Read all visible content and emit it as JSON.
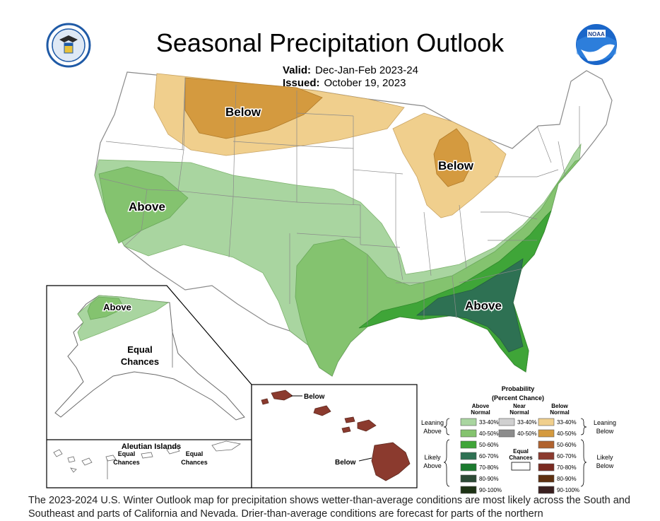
{
  "title": "Seasonal Precipitation Outlook",
  "valid_label": "Valid:",
  "valid_value": "Dec-Jan-Feb 2023-24",
  "issued_label": "Issued:",
  "issued_value": "October 19, 2023",
  "map_labels": {
    "below_northwest": "Below",
    "below_great_lakes": "Below",
    "above_west": "Above",
    "above_southeast": "Above",
    "alaska_above": "Above",
    "alaska_equal_1": "Equal",
    "alaska_equal_2": "Chances",
    "aleutian_title": "Aleutian Islands",
    "aleutian_equal_1": "Equal",
    "aleutian_equal_2": "Chances",
    "aleutian_equal_3": "Equal",
    "aleutian_equal_4": "Chances",
    "hawaii_below_1": "Below",
    "hawaii_below_2": "Below"
  },
  "colors": {
    "above_33_40": "#a9d5a0",
    "above_40_50": "#84c36f",
    "above_50_60": "#3fa538",
    "above_60_70": "#2e7153",
    "below_33_40": "#f0cf8d",
    "below_40_50": "#d49a3f",
    "below_hawaii": "#8b3a2e"
  },
  "legend": {
    "title_1": "Probability",
    "title_2": "(Percent Chance)",
    "above_header_1": "Above",
    "above_header_2": "Normal",
    "near_header_1": "Near",
    "near_header_2": "Normal",
    "below_header_1": "Below",
    "below_header_2": "Normal",
    "leaning_above_1": "Leaning",
    "leaning_above_2": "Above",
    "likely_above_1": "Likely",
    "likely_above_2": "Above",
    "leaning_below_1": "Leaning",
    "leaning_below_2": "Below",
    "likely_below_1": "Likely",
    "likely_below_2": "Below",
    "equal_1": "Equal",
    "equal_2": "Chances",
    "above_items": [
      {
        "label": "33-40%",
        "color": "#a9d5a0"
      },
      {
        "label": "40-50%",
        "color": "#84c36f"
      },
      {
        "label": "50-60%",
        "color": "#3fa538"
      },
      {
        "label": "60-70%",
        "color": "#2e7153"
      },
      {
        "label": "70-80%",
        "color": "#1b7a2e"
      },
      {
        "label": "80-90%",
        "color": "#2c4a35"
      },
      {
        "label": "90-100%",
        "color": "#1e3315"
      }
    ],
    "near_items": [
      {
        "label": "33-40%",
        "color": "#d0d0d0"
      },
      {
        "label": "40-50%",
        "color": "#8c8c8c"
      }
    ],
    "below_items": [
      {
        "label": "33-40%",
        "color": "#f0cf8d"
      },
      {
        "label": "40-50%",
        "color": "#d49a3f"
      },
      {
        "label": "50-60%",
        "color": "#b0622e"
      },
      {
        "label": "60-70%",
        "color": "#8b3a2e"
      },
      {
        "label": "70-80%",
        "color": "#7a2b22"
      },
      {
        "label": "80-90%",
        "color": "#5e3010"
      },
      {
        "label": "90-100%",
        "color": "#3a2020"
      }
    ]
  },
  "description": "The 2023-2024 U.S. Winter Outlook map for precipitation shows wetter-than-average conditions are most likely across the South and Southeast and parts of California and Nevada. Drier-than-average conditions are forecast for parts of the northern"
}
